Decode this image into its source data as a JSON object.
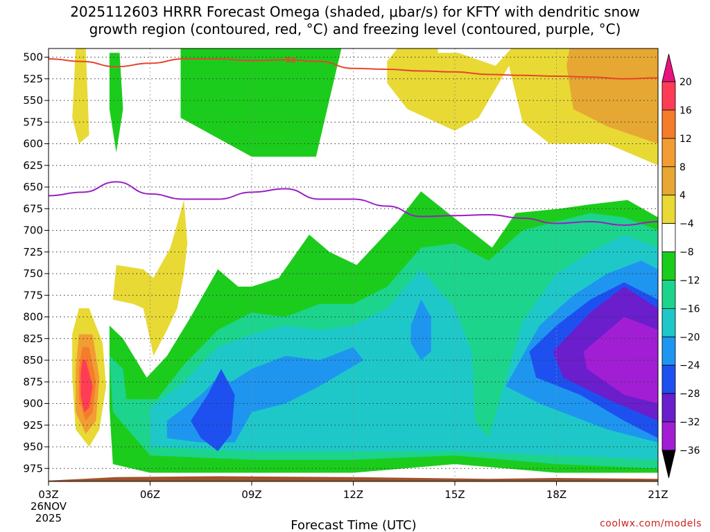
{
  "chart_data": {
    "type": "time-height contour",
    "title_line1": "2025112603 HRRR Forecast Omega (shaded, μbar/s) for KFTY with dendritic snow",
    "title_line2": "growth region (contoured, red, °C) and freezing level (contoured, purple, °C)",
    "xlabel": "Forecast Time (UTC)",
    "credit": "coolwx.com/models",
    "x_ticks": [
      {
        "hour": 3,
        "label": "03Z",
        "sub1": "26NOV",
        "sub2": "2025"
      },
      {
        "hour": 6,
        "label": "06Z"
      },
      {
        "hour": 9,
        "label": "09Z"
      },
      {
        "hour": 12,
        "label": "12Z"
      },
      {
        "hour": 15,
        "label": "15Z"
      },
      {
        "hour": 18,
        "label": "18Z"
      },
      {
        "hour": 21,
        "label": "21Z"
      }
    ],
    "xlim": [
      3,
      21
    ],
    "pressure_levels": [
      500,
      525,
      550,
      575,
      600,
      625,
      650,
      675,
      700,
      725,
      750,
      775,
      800,
      825,
      850,
      875,
      900,
      925,
      950,
      975
    ],
    "ylim": [
      490,
      990
    ],
    "colorbar": {
      "labels": [
        "20",
        "16",
        "12",
        "8",
        "4",
        "−4",
        "−8",
        "−12",
        "−16",
        "−20",
        "−24",
        "−28",
        "−32",
        "−36"
      ],
      "colors": [
        "#ff3c55",
        "#f57c2a",
        "#f29d33",
        "#e6a832",
        "#e8d935",
        "#ffffff",
        "#1ccc1c",
        "#1cd48c",
        "#1ec8c8",
        "#1e96f0",
        "#1e50f0",
        "#6a1ecc",
        "#a21ed4",
        "#a0a0a0"
      ],
      "top_arrow_color": "#e8147d",
      "bottom_arrow_color": "#000000"
    },
    "omega_regions": [
      {
        "category": "4 to 8",
        "color": "#e8d935",
        "points": [
          [
            3.8,
            490
          ],
          [
            4.1,
            490
          ],
          [
            4.2,
            590
          ],
          [
            3.9,
            600
          ],
          [
            3.7,
            570
          ]
        ]
      },
      {
        "category": "-4 to -8",
        "color": "#1ccc1c",
        "points": [
          [
            4.8,
            495
          ],
          [
            5.1,
            495
          ],
          [
            5.2,
            560
          ],
          [
            5.0,
            610
          ],
          [
            4.8,
            560
          ]
        ]
      },
      {
        "category": "-4 to -8",
        "color": "#1ccc1c",
        "points": [
          [
            6.9,
            465
          ],
          [
            11.8,
            465
          ],
          [
            10.9,
            615
          ],
          [
            9.0,
            615
          ],
          [
            6.9,
            570
          ]
        ]
      },
      {
        "category": "4 to 8",
        "color": "#e8d935",
        "points": [
          [
            13.8,
            465
          ],
          [
            14.5,
            465
          ],
          [
            14.5,
            495
          ],
          [
            15.1,
            495
          ],
          [
            16.2,
            510
          ],
          [
            16.9,
            480
          ],
          [
            20.4,
            480
          ],
          [
            21.0,
            520
          ],
          [
            21.0,
            625
          ],
          [
            19.5,
            600
          ],
          [
            17.8,
            600
          ],
          [
            17.0,
            575
          ],
          [
            16.6,
            510
          ],
          [
            15.7,
            570
          ],
          [
            15.0,
            585
          ],
          [
            13.6,
            560
          ],
          [
            13.0,
            530
          ],
          [
            13.0,
            505
          ]
        ]
      },
      {
        "category": "8 to 12",
        "color": "#e6a832",
        "points": [
          [
            18.5,
            465
          ],
          [
            21.0,
            465
          ],
          [
            21.0,
            600
          ],
          [
            19.5,
            580
          ],
          [
            18.5,
            560
          ],
          [
            18.3,
            510
          ]
        ]
      },
      {
        "category": "4 to 8",
        "color": "#e8d935",
        "points": [
          [
            5.0,
            740
          ],
          [
            5.8,
            745
          ],
          [
            6.1,
            755
          ],
          [
            6.6,
            720
          ],
          [
            7.0,
            665
          ],
          [
            7.1,
            715
          ],
          [
            7.0,
            750
          ],
          [
            6.8,
            790
          ],
          [
            6.5,
            815
          ],
          [
            6.1,
            845
          ],
          [
            5.8,
            790
          ],
          [
            5.5,
            785
          ],
          [
            4.9,
            780
          ]
        ]
      },
      {
        "category": "4 to 8",
        "color": "#e8d935",
        "points": [
          [
            3.9,
            790
          ],
          [
            4.2,
            790
          ],
          [
            4.6,
            830
          ],
          [
            4.7,
            880
          ],
          [
            4.5,
            930
          ],
          [
            4.2,
            950
          ],
          [
            3.8,
            930
          ],
          [
            3.7,
            870
          ],
          [
            3.7,
            820
          ]
        ]
      },
      {
        "category": "8 to 12",
        "color": "#f29d33",
        "points": [
          [
            3.9,
            820
          ],
          [
            4.3,
            820
          ],
          [
            4.5,
            870
          ],
          [
            4.4,
            920
          ],
          [
            4.1,
            935
          ],
          [
            3.8,
            910
          ],
          [
            3.8,
            860
          ]
        ]
      },
      {
        "category": "12 to 16",
        "color": "#f57c2a",
        "points": [
          [
            4.0,
            835
          ],
          [
            4.2,
            835
          ],
          [
            4.4,
            875
          ],
          [
            4.3,
            910
          ],
          [
            4.1,
            920
          ],
          [
            3.9,
            895
          ],
          [
            3.9,
            860
          ]
        ]
      },
      {
        "category": "16 to 20",
        "color": "#ff3c55",
        "points": [
          [
            4.0,
            850
          ],
          [
            4.1,
            850
          ],
          [
            4.3,
            880
          ],
          [
            4.2,
            905
          ],
          [
            4.05,
            910
          ],
          [
            3.95,
            890
          ],
          [
            3.95,
            865
          ]
        ]
      },
      {
        "category": "-4 to -8",
        "color": "#1ccc1c",
        "points": [
          [
            4.8,
            810
          ],
          [
            5.2,
            825
          ],
          [
            5.9,
            870
          ],
          [
            6.5,
            845
          ],
          [
            7.2,
            800
          ],
          [
            8.0,
            745
          ],
          [
            8.6,
            765
          ],
          [
            9.0,
            765
          ],
          [
            9.8,
            755
          ],
          [
            10.7,
            705
          ],
          [
            11.3,
            725
          ],
          [
            12.1,
            740
          ],
          [
            13.3,
            690
          ],
          [
            14.0,
            655
          ],
          [
            14.8,
            680
          ],
          [
            16.1,
            720
          ],
          [
            16.8,
            680
          ],
          [
            18.1,
            675
          ],
          [
            19.0,
            670
          ],
          [
            20.1,
            665
          ],
          [
            21.0,
            685
          ],
          [
            21.0,
            980
          ],
          [
            18.0,
            980
          ],
          [
            15.0,
            970
          ],
          [
            12.0,
            980
          ],
          [
            9.0,
            980
          ],
          [
            6.0,
            980
          ],
          [
            4.9,
            970
          ],
          [
            4.8,
            905
          ]
        ]
      },
      {
        "category": "-8 to -12",
        "color": "#1cd48c",
        "points": [
          [
            4.8,
            845
          ],
          [
            5.2,
            860
          ],
          [
            5.3,
            895
          ],
          [
            6.2,
            895
          ],
          [
            7.0,
            855
          ],
          [
            8.0,
            815
          ],
          [
            9.0,
            795
          ],
          [
            10.0,
            800
          ],
          [
            11.0,
            785
          ],
          [
            12.0,
            785
          ],
          [
            13.0,
            765
          ],
          [
            14.0,
            720
          ],
          [
            15.0,
            715
          ],
          [
            16.0,
            735
          ],
          [
            17.0,
            700
          ],
          [
            18.0,
            690
          ],
          [
            19.0,
            680
          ],
          [
            20.0,
            685
          ],
          [
            21.0,
            700
          ],
          [
            21.0,
            975
          ],
          [
            18.0,
            970
          ],
          [
            15.0,
            960
          ],
          [
            12.0,
            965
          ],
          [
            9.0,
            965
          ],
          [
            6.0,
            960
          ],
          [
            4.9,
            910
          ]
        ]
      },
      {
        "category": "-12 to -16",
        "color": "#1ec8c8",
        "points": [
          [
            6.0,
            905
          ],
          [
            7.0,
            875
          ],
          [
            8.0,
            835
          ],
          [
            9.0,
            820
          ],
          [
            10.0,
            810
          ],
          [
            11.0,
            815
          ],
          [
            12.0,
            810
          ],
          [
            13.0,
            790
          ],
          [
            14.0,
            745
          ],
          [
            15.0,
            790
          ],
          [
            15.5,
            840
          ],
          [
            15.6,
            920
          ],
          [
            16.0,
            940
          ],
          [
            17.0,
            805
          ],
          [
            18.0,
            750
          ],
          [
            19.0,
            725
          ],
          [
            20.0,
            705
          ],
          [
            21.0,
            720
          ],
          [
            21.0,
            965
          ],
          [
            18.0,
            960
          ],
          [
            15.0,
            955
          ],
          [
            12.0,
            955
          ],
          [
            9.0,
            955
          ],
          [
            6.0,
            950
          ]
        ]
      },
      {
        "category": "-16 to -20",
        "color": "#1e96f0",
        "points": [
          [
            6.5,
            920
          ],
          [
            7.5,
            890
          ],
          [
            8.0,
            870
          ],
          [
            8.4,
            875
          ],
          [
            9.0,
            860
          ],
          [
            10.0,
            845
          ],
          [
            11.0,
            850
          ],
          [
            12.0,
            835
          ],
          [
            12.3,
            850
          ],
          [
            11.0,
            880
          ],
          [
            10.0,
            900
          ],
          [
            9.0,
            910
          ],
          [
            8.5,
            945
          ],
          [
            7.5,
            945
          ],
          [
            6.5,
            940
          ]
        ]
      },
      {
        "category": "-16 to -20",
        "color": "#1e96f0",
        "points": [
          [
            13.7,
            810
          ],
          [
            14.0,
            780
          ],
          [
            14.3,
            800
          ],
          [
            14.3,
            840
          ],
          [
            14.0,
            850
          ],
          [
            13.7,
            830
          ]
        ]
      },
      {
        "category": "-16 to -20",
        "color": "#1e96f0",
        "points": [
          [
            16.5,
            880
          ],
          [
            17.5,
            810
          ],
          [
            18.5,
            775
          ],
          [
            19.5,
            750
          ],
          [
            20.5,
            735
          ],
          [
            21.0,
            745
          ],
          [
            21.0,
            945
          ],
          [
            19.5,
            930
          ],
          [
            18.5,
            915
          ],
          [
            17.5,
            900
          ]
        ]
      },
      {
        "category": "-20 to -24",
        "color": "#1e50f0",
        "points": [
          [
            7.2,
            920
          ],
          [
            7.7,
            890
          ],
          [
            8.1,
            860
          ],
          [
            8.5,
            890
          ],
          [
            8.4,
            935
          ],
          [
            8.0,
            955
          ],
          [
            7.5,
            940
          ]
        ]
      },
      {
        "category": "-20 to -24",
        "color": "#1e50f0",
        "points": [
          [
            17.2,
            840
          ],
          [
            18.0,
            810
          ],
          [
            19.0,
            780
          ],
          [
            20.0,
            760
          ],
          [
            21.0,
            780
          ],
          [
            21.0,
            940
          ],
          [
            20.0,
            920
          ],
          [
            18.7,
            890
          ],
          [
            17.4,
            870
          ]
        ]
      },
      {
        "category": "-24 to -28",
        "color": "#6a1ecc",
        "points": [
          [
            17.9,
            840
          ],
          [
            19.0,
            795
          ],
          [
            20.0,
            765
          ],
          [
            21.0,
            790
          ],
          [
            21.0,
            920
          ],
          [
            19.5,
            895
          ],
          [
            18.2,
            870
          ]
        ]
      },
      {
        "category": "-28 to -32",
        "color": "#a21ed4",
        "points": [
          [
            18.8,
            840
          ],
          [
            20.0,
            800
          ],
          [
            21.0,
            815
          ],
          [
            21.0,
            900
          ],
          [
            20.0,
            890
          ],
          [
            18.9,
            860
          ]
        ]
      }
    ],
    "dendritic_growth_contour": {
      "label": "-12",
      "color": "#e8432c",
      "points": [
        [
          3,
          502
        ],
        [
          4,
          505
        ],
        [
          5,
          511
        ],
        [
          6,
          507
        ],
        [
          7,
          502
        ],
        [
          8,
          502
        ],
        [
          9,
          504
        ],
        [
          10,
          503
        ],
        [
          11,
          505
        ],
        [
          12,
          513
        ],
        [
          13,
          514
        ],
        [
          14,
          516
        ],
        [
          15,
          517
        ],
        [
          16,
          520
        ],
        [
          17,
          521
        ],
        [
          18,
          522
        ],
        [
          19,
          523
        ],
        [
          20,
          525
        ],
        [
          21,
          524
        ]
      ]
    },
    "freezing_level_contour": {
      "color": "#9a1ec4",
      "points": [
        [
          3,
          660
        ],
        [
          4,
          656
        ],
        [
          5,
          644
        ],
        [
          6,
          658
        ],
        [
          7,
          664
        ],
        [
          8,
          664
        ],
        [
          9,
          656
        ],
        [
          10,
          652
        ],
        [
          11,
          664
        ],
        [
          12,
          664
        ],
        [
          13,
          672
        ],
        [
          14,
          684
        ],
        [
          15,
          683
        ],
        [
          16,
          682
        ],
        [
          17,
          686
        ],
        [
          18,
          692
        ],
        [
          19,
          690
        ],
        [
          20,
          694
        ],
        [
          21,
          690
        ]
      ]
    },
    "terrain_color": "#a0522d"
  }
}
